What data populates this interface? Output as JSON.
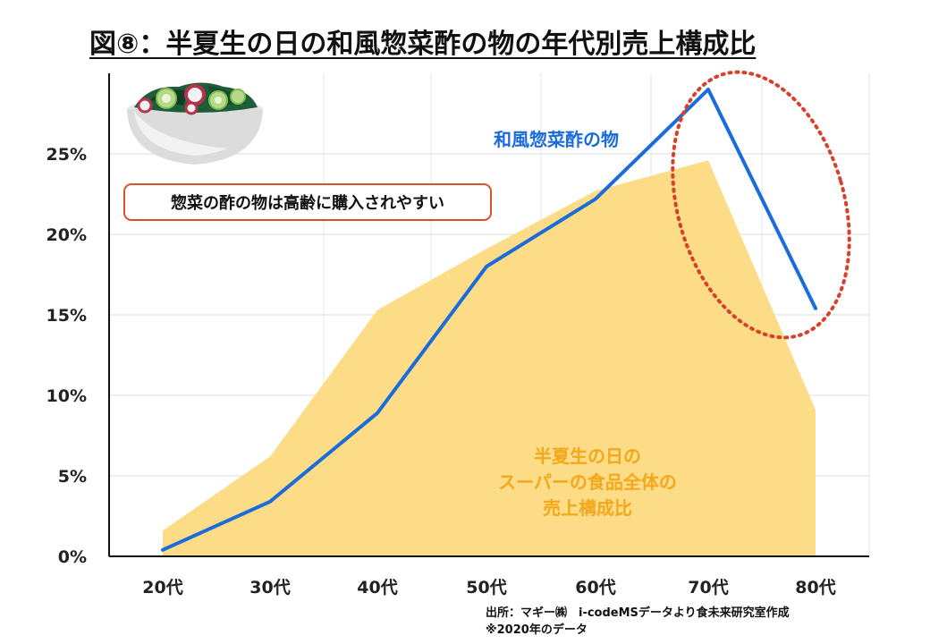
{
  "title": "図⑧：半夏生の日の和風惣菜酢の物の年代別売上構成比",
  "callout": "惣菜の酢の物は高齢に購入されやすい",
  "source": {
    "line1": "出所：マギー㈱　i-codeMSデータより食未来研究室作成",
    "line2": "※2020年のデータ"
  },
  "icons": {
    "salad": "salad-bowl-icon"
  },
  "colors": {
    "line": "#1a6bdc",
    "area": "#fddc87",
    "highlight": "#d9402a",
    "callout_border": "#d9502d"
  },
  "chart_data": {
    "type": "line",
    "title": "図⑧：半夏生の日の和風惣菜酢の物の年代別売上構成比",
    "xlabel": "",
    "ylabel": "",
    "categories": [
      "20代",
      "30代",
      "40代",
      "50代",
      "60代",
      "70代",
      "80代"
    ],
    "ylim": [
      0,
      30
    ],
    "yticks": [
      "0%",
      "5%",
      "10%",
      "15%",
      "20%",
      "25%"
    ],
    "grid": true,
    "series": [
      {
        "name": "和風惣菜酢の物",
        "kind": "line",
        "values": [
          0.4,
          3.4,
          8.9,
          18.0,
          22.2,
          29.0,
          15.4
        ]
      },
      {
        "name": "半夏生の日のスーパーの食品全体の売上構成比",
        "kind": "area",
        "label_lines": [
          "半夏生の日の",
          "スーパーの食品全体の",
          "売上構成比"
        ],
        "values": [
          1.6,
          6.2,
          15.3,
          19.1,
          22.7,
          24.6,
          9.1
        ]
      }
    ],
    "annotation": "70代-80代 highlighted with dotted ellipse"
  }
}
